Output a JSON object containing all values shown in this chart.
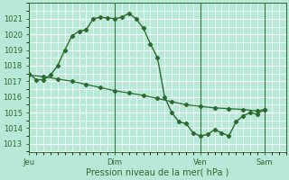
{
  "title": "",
  "xlabel": "Pression niveau de la mer( hPa )",
  "ylabel": "",
  "bg_color": "#b8e8d8",
  "grid_color": "#ffffff",
  "line_color": "#2d6a2d",
  "yticks": [
    1013,
    1014,
    1015,
    1016,
    1017,
    1018,
    1019,
    1020,
    1021
  ],
  "ylim": [
    1012.5,
    1022.0
  ],
  "xtick_labels": [
    "Jeu",
    "Dim",
    "Ven",
    "Sam"
  ],
  "xtick_positions": [
    0,
    12,
    24,
    33
  ],
  "xlim": [
    0,
    36
  ],
  "series1_x": [
    0,
    1,
    2,
    3,
    4,
    5,
    6,
    7,
    8,
    9,
    10,
    11,
    12,
    13,
    14,
    15,
    16,
    17,
    18,
    19,
    20,
    21,
    22,
    23,
    24,
    25,
    26,
    27,
    28,
    29,
    30,
    31,
    32,
    33
  ],
  "series1_y": [
    1017.5,
    1017.1,
    1017.1,
    1017.4,
    1018.0,
    1019.0,
    1019.9,
    1020.2,
    1020.3,
    1021.0,
    1021.1,
    1021.05,
    1021.0,
    1021.1,
    1021.35,
    1021.0,
    1020.4,
    1019.4,
    1018.5,
    1016.0,
    1015.0,
    1014.4,
    1014.3,
    1013.7,
    1013.5,
    1013.6,
    1013.9,
    1013.7,
    1013.5,
    1014.4,
    1014.8,
    1015.0,
    1014.9,
    1015.2
  ],
  "series2_x": [
    0,
    2,
    4,
    6,
    8,
    10,
    12,
    14,
    16,
    18,
    20,
    22,
    24,
    26,
    28,
    30,
    32,
    33
  ],
  "series2_y": [
    1017.4,
    1017.3,
    1017.15,
    1017.0,
    1016.8,
    1016.6,
    1016.4,
    1016.25,
    1016.1,
    1015.9,
    1015.7,
    1015.5,
    1015.4,
    1015.3,
    1015.25,
    1015.2,
    1015.1,
    1015.2
  ],
  "xlabel_fontsize": 7,
  "tick_fontsize": 6
}
